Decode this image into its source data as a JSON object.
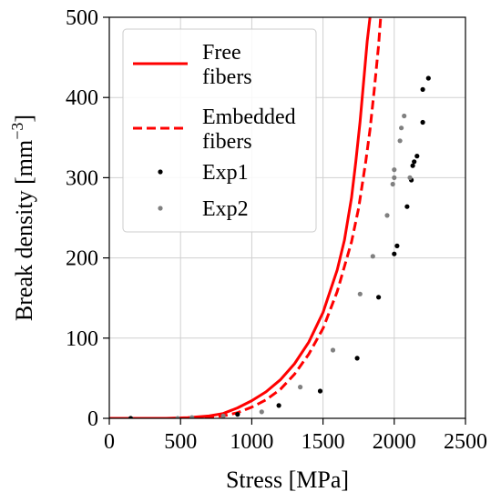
{
  "chart_data": {
    "type": "line",
    "xlabel": "Stress [MPa]",
    "ylabel_main": "Break density [mm",
    "ylabel_sup": "−3",
    "ylabel_close": "]",
    "xlim": [
      0,
      2500
    ],
    "ylim": [
      0,
      500
    ],
    "xticks": [
      0,
      500,
      1000,
      1500,
      2000,
      2500
    ],
    "yticks": [
      0,
      100,
      200,
      300,
      400,
      500
    ],
    "xtick_labels": [
      "0",
      "500",
      "1000",
      "1500",
      "2000",
      "2500"
    ],
    "ytick_labels": [
      "0",
      "100",
      "200",
      "300",
      "400",
      "500"
    ],
    "grid": true,
    "legend_position": "top-left",
    "legend": [
      {
        "label_line1": "Free",
        "label_line2": "fibers",
        "style": "solid"
      },
      {
        "label_line1": "Embedded",
        "label_line2": "fibers",
        "style": "dashed"
      },
      {
        "label_line1": "Exp1",
        "label_line2": "",
        "style": "black-dot"
      },
      {
        "label_line1": "Exp2",
        "label_line2": "",
        "style": "gray-dot"
      }
    ],
    "series": [
      {
        "name": "Free fibers",
        "kind": "line",
        "dash": "solid",
        "color": "#ff0000",
        "points": [
          [
            0,
            0
          ],
          [
            400,
            0
          ],
          [
            550,
            0.8
          ],
          [
            700,
            3
          ],
          [
            800,
            6
          ],
          [
            900,
            13
          ],
          [
            1000,
            22
          ],
          [
            1100,
            33
          ],
          [
            1200,
            48
          ],
          [
            1300,
            68
          ],
          [
            1400,
            95
          ],
          [
            1500,
            132
          ],
          [
            1600,
            185
          ],
          [
            1650,
            222
          ],
          [
            1700,
            275
          ],
          [
            1730,
            320
          ],
          [
            1760,
            370
          ],
          [
            1790,
            430
          ],
          [
            1810,
            470
          ],
          [
            1830,
            500
          ]
        ]
      },
      {
        "name": "Embedded fibers",
        "kind": "line",
        "dash": "dashed",
        "color": "#ff0000",
        "points": [
          [
            0,
            0
          ],
          [
            500,
            0
          ],
          [
            650,
            1
          ],
          [
            800,
            3
          ],
          [
            900,
            7
          ],
          [
            1000,
            14
          ],
          [
            1100,
            23
          ],
          [
            1200,
            36
          ],
          [
            1300,
            55
          ],
          [
            1400,
            80
          ],
          [
            1500,
            112
          ],
          [
            1600,
            158
          ],
          [
            1700,
            220
          ],
          [
            1750,
            262
          ],
          [
            1800,
            320
          ],
          [
            1830,
            360
          ],
          [
            1860,
            410
          ],
          [
            1890,
            465
          ],
          [
            1905,
            500
          ]
        ]
      },
      {
        "name": "Exp1",
        "kind": "scatter",
        "color": "#000000",
        "points": [
          [
            150,
            0
          ],
          [
            900,
            5
          ],
          [
            1190,
            16
          ],
          [
            1480,
            34
          ],
          [
            1740,
            75
          ],
          [
            1890,
            151
          ],
          [
            2000,
            205
          ],
          [
            2020,
            215
          ],
          [
            2090,
            264
          ],
          [
            2120,
            297
          ],
          [
            2130,
            315
          ],
          [
            2140,
            320
          ],
          [
            2160,
            327
          ],
          [
            2200,
            369
          ],
          [
            2200,
            410
          ],
          [
            2240,
            424
          ]
        ]
      },
      {
        "name": "Exp2",
        "kind": "scatter",
        "color": "#808080",
        "points": [
          [
            480,
            0
          ],
          [
            580,
            1
          ],
          [
            800,
            3
          ],
          [
            1070,
            8
          ],
          [
            1340,
            39
          ],
          [
            1570,
            85
          ],
          [
            1760,
            155
          ],
          [
            1850,
            202
          ],
          [
            1950,
            253
          ],
          [
            1990,
            292
          ],
          [
            2000,
            300
          ],
          [
            2000,
            310
          ],
          [
            2040,
            346
          ],
          [
            2050,
            362
          ],
          [
            2070,
            377
          ],
          [
            2110,
            300
          ]
        ]
      }
    ]
  }
}
